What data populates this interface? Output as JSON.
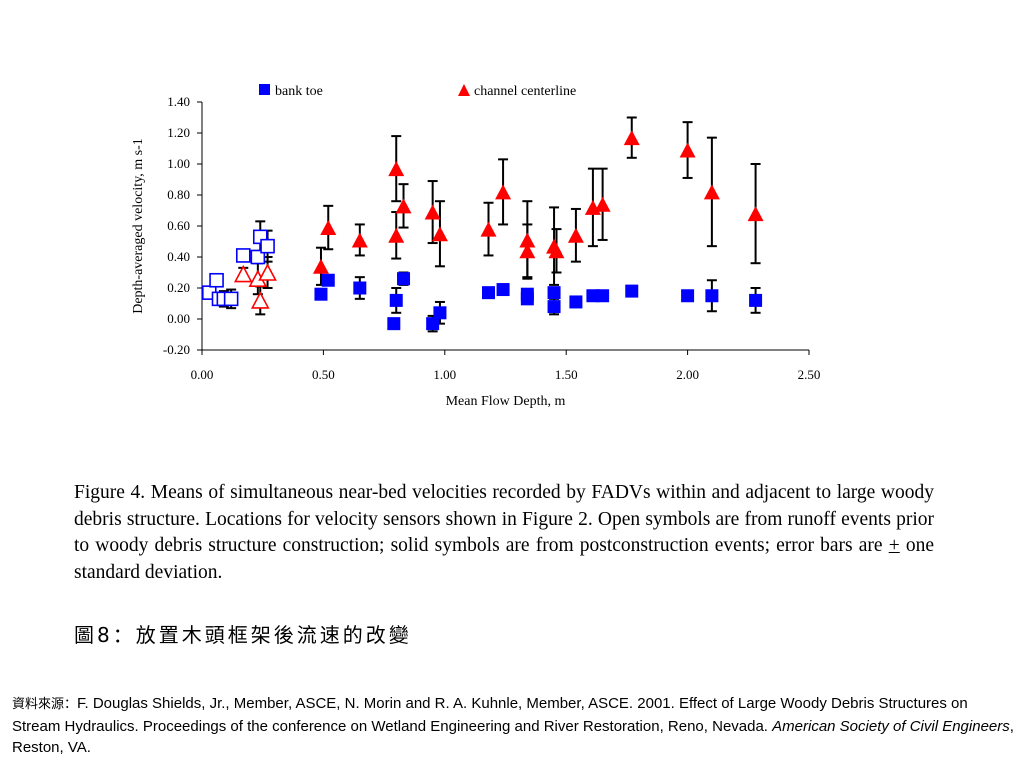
{
  "chart_data": {
    "type": "scatter",
    "xlabel": "Mean Flow Depth, m",
    "ylabel": "Depth-averaged velocity, m s-1",
    "xlim": [
      0,
      2.5
    ],
    "ylim": [
      -0.2,
      1.4
    ],
    "x_ticks": [
      "0.00",
      "0.50",
      "1.00",
      "1.50",
      "2.00",
      "2.50"
    ],
    "y_ticks": [
      "-0.20",
      "0.00",
      "0.20",
      "0.40",
      "0.60",
      "0.80",
      "1.00",
      "1.20",
      "1.40"
    ],
    "grid": false,
    "legend_position": "top",
    "series": [
      {
        "name": "bank toe",
        "marker": "square",
        "color": "#0000ff",
        "filled": true,
        "points": [
          {
            "x": 0.49,
            "y": 0.16,
            "err": 0.03
          },
          {
            "x": 0.52,
            "y": 0.25,
            "err": 0.03
          },
          {
            "x": 0.65,
            "y": 0.2,
            "err": 0.07
          },
          {
            "x": 0.79,
            "y": -0.03,
            "err": 0.03
          },
          {
            "x": 0.8,
            "y": 0.12,
            "err": 0.08
          },
          {
            "x": 0.83,
            "y": 0.26,
            "err": 0.04
          },
          {
            "x": 0.95,
            "y": -0.03,
            "err": 0.05
          },
          {
            "x": 0.98,
            "y": 0.04,
            "err": 0.07
          },
          {
            "x": 1.18,
            "y": 0.17,
            "err": 0.03
          },
          {
            "x": 1.24,
            "y": 0.19,
            "err": 0.02
          },
          {
            "x": 1.34,
            "y": 0.16,
            "err": 0.03
          },
          {
            "x": 1.34,
            "y": 0.13,
            "err": 0.02
          },
          {
            "x": 1.45,
            "y": 0.08,
            "err": 0.05
          },
          {
            "x": 1.45,
            "y": 0.17,
            "err": 0.02
          },
          {
            "x": 1.54,
            "y": 0.11,
            "err": 0.02
          },
          {
            "x": 1.61,
            "y": 0.15,
            "err": 0.02
          },
          {
            "x": 1.65,
            "y": 0.15,
            "err": 0.02
          },
          {
            "x": 1.77,
            "y": 0.18,
            "err": 0.02
          },
          {
            "x": 2.0,
            "y": 0.15,
            "err": 0.02
          },
          {
            "x": 2.1,
            "y": 0.15,
            "err": 0.1
          },
          {
            "x": 2.28,
            "y": 0.12,
            "err": 0.08
          }
        ]
      },
      {
        "name": "channel centerline",
        "marker": "triangle",
        "color": "#ff0000",
        "filled": true,
        "points": [
          {
            "x": 0.49,
            "y": 0.34,
            "err": 0.12
          },
          {
            "x": 0.52,
            "y": 0.59,
            "err": 0.14
          },
          {
            "x": 0.65,
            "y": 0.51,
            "err": 0.1
          },
          {
            "x": 0.8,
            "y": 0.97,
            "err": 0.21
          },
          {
            "x": 0.8,
            "y": 0.54,
            "err": 0.15
          },
          {
            "x": 0.83,
            "y": 0.73,
            "err": 0.14
          },
          {
            "x": 0.95,
            "y": 0.69,
            "err": 0.2
          },
          {
            "x": 0.98,
            "y": 0.55,
            "err": 0.21
          },
          {
            "x": 1.18,
            "y": 0.58,
            "err": 0.17
          },
          {
            "x": 1.24,
            "y": 0.82,
            "err": 0.21
          },
          {
            "x": 1.34,
            "y": 0.51,
            "err": 0.25
          },
          {
            "x": 1.34,
            "y": 0.44,
            "err": 0.17
          },
          {
            "x": 1.45,
            "y": 0.47,
            "err": 0.25
          },
          {
            "x": 1.46,
            "y": 0.44,
            "err": 0.14
          },
          {
            "x": 1.54,
            "y": 0.54,
            "err": 0.17
          },
          {
            "x": 1.61,
            "y": 0.72,
            "err": 0.25
          },
          {
            "x": 1.65,
            "y": 0.74,
            "err": 0.23
          },
          {
            "x": 1.77,
            "y": 1.17,
            "err": 0.13
          },
          {
            "x": 2.0,
            "y": 1.09,
            "err": 0.18
          },
          {
            "x": 2.1,
            "y": 0.82,
            "err": 0.35
          },
          {
            "x": 2.28,
            "y": 0.68,
            "err": 0.32
          }
        ]
      },
      {
        "name": "",
        "marker": "square",
        "color": "#0000ff",
        "filled": false,
        "points": [
          {
            "x": 0.03,
            "y": 0.17,
            "err": 0.03
          },
          {
            "x": 0.06,
            "y": 0.25,
            "err": 0.03
          },
          {
            "x": 0.07,
            "y": 0.13,
            "err": 0.03
          },
          {
            "x": 0.09,
            "y": 0.13,
            "err": 0.05
          },
          {
            "x": 0.12,
            "y": 0.13,
            "err": 0.06
          },
          {
            "x": 0.17,
            "y": 0.41,
            "err": 0.03
          },
          {
            "x": 0.23,
            "y": 0.4,
            "err": 0.04
          },
          {
            "x": 0.24,
            "y": 0.53,
            "err": 0.1
          },
          {
            "x": 0.27,
            "y": 0.47,
            "err": 0.1
          }
        ]
      },
      {
        "name": "",
        "marker": "triangle",
        "color": "#ff0000",
        "filled": false,
        "points": [
          {
            "x": 0.17,
            "y": 0.29,
            "err": 0.04
          },
          {
            "x": 0.23,
            "y": 0.26,
            "err": 0.1
          },
          {
            "x": 0.24,
            "y": 0.12,
            "err": 0.09
          },
          {
            "x": 0.27,
            "y": 0.3,
            "err": 0.1
          }
        ]
      }
    ]
  },
  "caption": {
    "part1": "Figure 4.  Means of simultaneous near-bed velocities recorded by FADVs within and adjacent to large woody debris structure.  Locations for velocity sensors shown in Figure 2.  Open symbols are from runoff events prior to woody debris structure construction; solid symbols are from postconstruction events; error bars are ",
    "plusminus": "+",
    "part2": " one standard deviation."
  },
  "cjk_title": "圖8：放置木頭框架後流速的改變",
  "source": {
    "label": "資料來源：",
    "text": "F. Douglas Shields, Jr., Member, ASCE, N. Morin and R. A. Kuhnle, Member, ASCE. 2001. Effect of Large Woody Debris Structures on Stream Hydraulics. Proceedings of the conference on Wetland Engineering and River Restoration, Reno, Nevada. ",
    "italic": "American Society of Civil Engineers",
    "tail": ", Reston, VA."
  }
}
